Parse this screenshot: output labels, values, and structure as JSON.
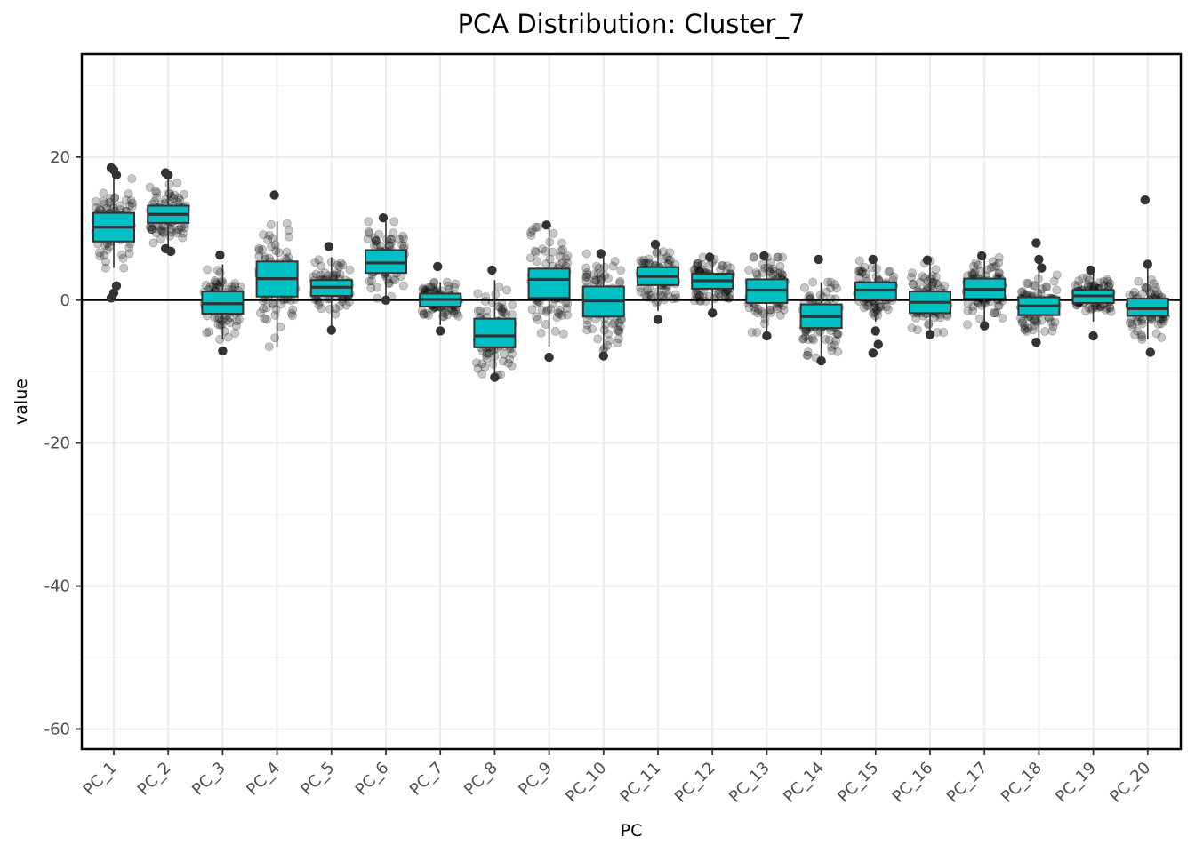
{
  "chart_data": {
    "type": "boxplot",
    "title": "PCA Distribution: Cluster_7",
    "xlabel": "PC",
    "ylabel": "value",
    "ylim": [
      -62.8,
      34.4
    ],
    "yticks": [
      20,
      0,
      -20,
      -40,
      -60
    ],
    "ytick_labels": [
      "20",
      "0",
      "-20",
      "-40",
      "-60"
    ],
    "grid": true,
    "reference_line_y": 0,
    "box_fill": "#00C0C4",
    "box_stroke": "#333333",
    "point_color": "#000000",
    "categories": [
      "PC_1",
      "PC_2",
      "PC_3",
      "PC_4",
      "PC_5",
      "PC_6",
      "PC_7",
      "PC_8",
      "PC_9",
      "PC_10",
      "PC_11",
      "PC_12",
      "PC_13",
      "PC_14",
      "PC_15",
      "PC_16",
      "PC_17",
      "PC_18",
      "PC_19",
      "PC_20"
    ],
    "boxes": [
      {
        "q1": 8.2,
        "median": 10.2,
        "q3": 12.2,
        "min": 4.5,
        "max": 17.8
      },
      {
        "q1": 10.8,
        "median": 12.0,
        "q3": 13.2,
        "min": 7.0,
        "max": 17.0
      },
      {
        "q1": -1.9,
        "median": -0.5,
        "q3": 1.2,
        "min": -5.5,
        "max": 5.0
      },
      {
        "q1": 0.5,
        "median": 3.0,
        "q3": 5.4,
        "min": -6.5,
        "max": 11.0
      },
      {
        "q1": 0.6,
        "median": 1.8,
        "q3": 2.8,
        "min": -3.8,
        "max": 6.0
      },
      {
        "q1": 3.8,
        "median": 5.2,
        "q3": 7.0,
        "min": 0.0,
        "max": 11.0
      },
      {
        "q1": -0.9,
        "median": 0.1,
        "q3": 0.9,
        "min": -3.5,
        "max": 2.5
      },
      {
        "q1": -6.6,
        "median": -5.0,
        "q3": -2.6,
        "min": -10.5,
        "max": 2.8
      },
      {
        "q1": 0.3,
        "median": 2.9,
        "q3": 4.4,
        "min": -6.5,
        "max": 10.2
      },
      {
        "q1": -2.3,
        "median": -0.1,
        "q3": 1.9,
        "min": -7.0,
        "max": 6.5
      },
      {
        "q1": 2.1,
        "median": 3.3,
        "q3": 4.6,
        "min": -1.5,
        "max": 7.5
      },
      {
        "q1": 1.6,
        "median": 2.7,
        "q3": 3.7,
        "min": -1.5,
        "max": 6.0
      },
      {
        "q1": -0.4,
        "median": 1.4,
        "q3": 2.9,
        "min": -4.5,
        "max": 6.0
      },
      {
        "q1": -3.9,
        "median": -2.3,
        "q3": -0.6,
        "min": -8.5,
        "max": 2.5
      },
      {
        "q1": 0.1,
        "median": 1.4,
        "q3": 2.5,
        "min": -3.0,
        "max": 5.5
      },
      {
        "q1": -1.8,
        "median": -0.3,
        "q3": 1.2,
        "min": -4.5,
        "max": 5.5
      },
      {
        "q1": 0.2,
        "median": 1.5,
        "q3": 3.0,
        "min": -3.5,
        "max": 6.0
      },
      {
        "q1": -2.1,
        "median": -0.8,
        "q3": 0.4,
        "min": -5.5,
        "max": 5.5
      },
      {
        "q1": -0.4,
        "median": 0.6,
        "q3": 1.4,
        "min": -3.0,
        "max": 4.0
      },
      {
        "q1": -2.2,
        "median": -1.2,
        "q3": 0.2,
        "min": -5.5,
        "max": 4.5
      }
    ],
    "outliers": [
      {
        "category": "PC_1",
        "values": [
          18.5,
          18.2,
          17.5,
          0.3,
          1.0,
          2.0
        ]
      },
      {
        "category": "PC_2",
        "values": [
          17.8,
          17.5,
          6.8,
          7.2
        ]
      },
      {
        "category": "PC_3",
        "values": [
          6.3,
          -7.1
        ]
      },
      {
        "category": "PC_4",
        "values": [
          14.7
        ]
      },
      {
        "category": "PC_5",
        "values": [
          7.5,
          -4.2
        ]
      },
      {
        "category": "PC_6",
        "values": [
          11.5,
          0.0
        ]
      },
      {
        "category": "PC_7",
        "values": [
          4.7,
          -4.3
        ]
      },
      {
        "category": "PC_8",
        "values": [
          4.2,
          -10.8
        ]
      },
      {
        "category": "PC_9",
        "values": [
          10.5,
          -8.0
        ]
      },
      {
        "category": "PC_10",
        "values": [
          6.5,
          -7.8
        ]
      },
      {
        "category": "PC_11",
        "values": [
          7.8,
          -2.7
        ]
      },
      {
        "category": "PC_12",
        "values": [
          6.0,
          -1.8
        ]
      },
      {
        "category": "PC_13",
        "values": [
          6.2,
          -5.0
        ]
      },
      {
        "category": "PC_14",
        "values": [
          5.7,
          -8.5
        ]
      },
      {
        "category": "PC_15",
        "values": [
          5.7,
          -4.3,
          -6.2,
          -7.4
        ]
      },
      {
        "category": "PC_16",
        "values": [
          5.6,
          -4.8
        ]
      },
      {
        "category": "PC_17",
        "values": [
          6.2,
          -3.6
        ]
      },
      {
        "category": "PC_18",
        "values": [
          8.0,
          5.7,
          4.5,
          -5.9
        ]
      },
      {
        "category": "PC_19",
        "values": [
          4.2,
          -5.0
        ]
      },
      {
        "category": "PC_20",
        "values": [
          14.0,
          5.0,
          -7.3
        ]
      }
    ]
  }
}
